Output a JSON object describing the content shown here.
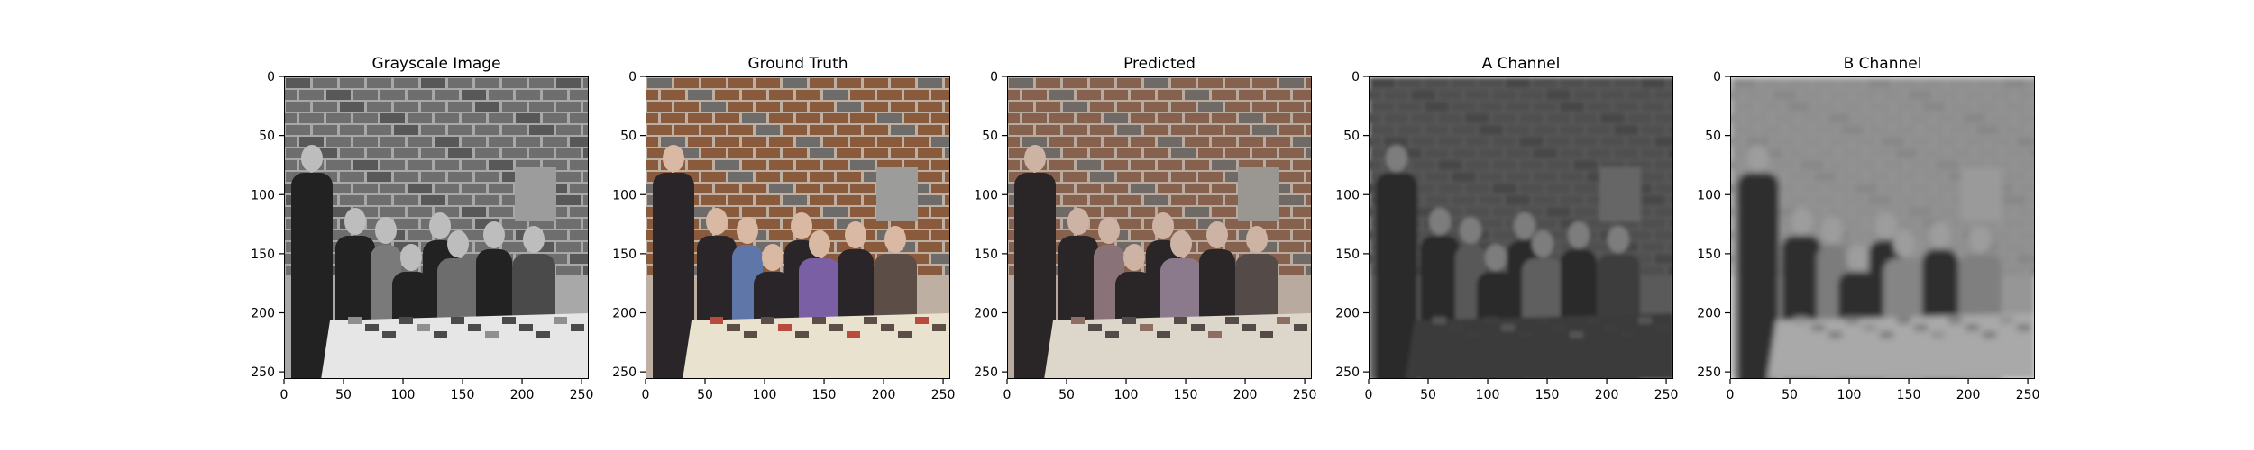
{
  "chart_data": [
    {
      "type": "image",
      "title": "Grayscale Image",
      "x_ticks": [
        0,
        50,
        100,
        150,
        200,
        250
      ],
      "y_ticks": [
        0,
        50,
        100,
        150,
        200,
        250
      ],
      "xlim": [
        0,
        256
      ],
      "ylim": [
        256,
        0
      ],
      "colormode": "gray"
    },
    {
      "type": "image",
      "title": "Ground Truth",
      "x_ticks": [
        0,
        50,
        100,
        150,
        200,
        250
      ],
      "y_ticks": [
        0,
        50,
        100,
        150,
        200,
        250
      ],
      "xlim": [
        0,
        256
      ],
      "ylim": [
        256,
        0
      ],
      "colormode": "color"
    },
    {
      "type": "image",
      "title": "Predicted",
      "x_ticks": [
        0,
        50,
        100,
        150,
        200,
        250
      ],
      "y_ticks": [
        0,
        50,
        100,
        150,
        200,
        250
      ],
      "xlim": [
        0,
        256
      ],
      "ylim": [
        256,
        0
      ],
      "colormode": "muted-color"
    },
    {
      "type": "image",
      "title": "A Channel",
      "x_ticks": [
        0,
        50,
        100,
        150,
        200,
        250
      ],
      "y_ticks": [
        0,
        50,
        100,
        150,
        200,
        250
      ],
      "xlim": [
        0,
        256
      ],
      "ylim": [
        256,
        0
      ],
      "colormode": "dark-gray"
    },
    {
      "type": "image",
      "title": "B Channel",
      "x_ticks": [
        0,
        50,
        100,
        150,
        200,
        250
      ],
      "y_ticks": [
        0,
        50,
        100,
        150,
        200,
        250
      ],
      "xlim": [
        0,
        256
      ],
      "ylim": [
        256,
        0
      ],
      "colormode": "blur-gray"
    }
  ]
}
